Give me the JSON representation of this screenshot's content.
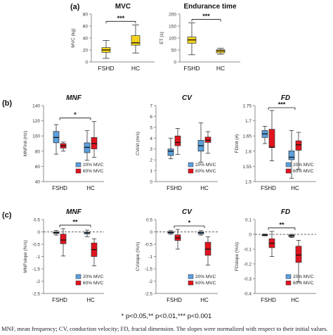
{
  "colors": {
    "gold": "#f5d21c",
    "blue": "#5aa0dc",
    "red": "#e0141e",
    "axis": "#8c8c8c",
    "text": "#111111"
  },
  "significance_legend": "* p<0.05,** p<0.01,*** p<0.001",
  "caption": "MNF, mean frequency; CV, conduction velocity; FD, fractal dimension. The slopes were normalized with respect to their initial values.",
  "chart_data": [
    {
      "type": "box",
      "panel_label": "(a)",
      "title": "MVC",
      "xlabel": "",
      "ylabel": "MVC (kg)",
      "ylim": [
        0,
        80
      ],
      "yticks": [
        "0",
        "20",
        "40",
        "60",
        "80"
      ],
      "categories": [
        "FSHD",
        "HC"
      ],
      "series": [
        {
          "color": "#f5d21c",
          "boxes": [
            {
              "min": 6,
              "q1": 16,
              "median": 20,
              "q3": 24,
              "max": 36
            },
            {
              "min": 15,
              "q1": 28,
              "median": 32,
              "q3": 44,
              "max": 62
            }
          ]
        }
      ],
      "annotation": {
        "text": "***",
        "from": 0,
        "to": 1
      }
    },
    {
      "type": "box",
      "title": "Endurance  time",
      "xlabel": "",
      "ylabel": "ET (s)",
      "ylim": [
        0,
        200
      ],
      "yticks": [
        "0",
        "50",
        "100",
        "150",
        "200"
      ],
      "categories": [
        "FSHD",
        "HC"
      ],
      "series": [
        {
          "color": "#f5d21c",
          "boxes": [
            {
              "min": 30,
              "q1": 78,
              "median": 92,
              "q3": 104,
              "max": 163
            },
            {
              "min": 32,
              "q1": 38,
              "median": 46,
              "q3": 51,
              "max": 57
            }
          ]
        }
      ],
      "annotation": {
        "text": "***",
        "from": 0,
        "to": 1
      }
    },
    {
      "type": "box",
      "panel_label": "(b)",
      "title": "MNF",
      "xlabel": "",
      "ylabel": "MNFinit (Hz)",
      "ylim": [
        40,
        140
      ],
      "yticks": [
        "40",
        "60",
        "80",
        "100",
        "120",
        "140"
      ],
      "categories": [
        "FSHD",
        "HC"
      ],
      "series": [
        {
          "name": "20% MVC",
          "color": "#5aa0dc",
          "boxes": [
            {
              "min": 76,
              "q1": 91,
              "median": 98,
              "q3": 106,
              "max": 115
            },
            {
              "min": 68,
              "q1": 78,
              "median": 85,
              "q3": 91,
              "max": 107
            }
          ]
        },
        {
          "name": "60% MVC",
          "color": "#e0141e",
          "boxes": [
            {
              "min": 80,
              "q1": 84,
              "median": 87,
              "q3": 90,
              "max": 92
            },
            {
              "min": 72,
              "q1": 83,
              "median": 90,
              "q3": 98,
              "max": 119
            }
          ]
        }
      ],
      "annotation": {
        "text": "*",
        "from": 0,
        "to": 1
      }
    },
    {
      "type": "box",
      "title": "CV",
      "xlabel": "",
      "ylabel": "CVinit (m/s)",
      "ylim": [
        0,
        7
      ],
      "yticks": [
        "0",
        "1",
        "2",
        "3",
        "4",
        "5",
        "6",
        "7"
      ],
      "categories": [
        "FSHD",
        "HC"
      ],
      "series": [
        {
          "name": "20% MVC",
          "color": "#5aa0dc",
          "boxes": [
            {
              "min": 2.1,
              "q1": 2.4,
              "median": 2.8,
              "q3": 3.0,
              "max": 4.0
            },
            {
              "min": 1.8,
              "q1": 2.8,
              "median": 3.3,
              "q3": 3.8,
              "max": 5.4
            }
          ]
        },
        {
          "name": "60% MVC",
          "color": "#e0141e",
          "boxes": [
            {
              "min": 2.5,
              "q1": 3.3,
              "median": 3.6,
              "q3": 4.2,
              "max": 4.9
            },
            {
              "min": 2.6,
              "q1": 3.6,
              "median": 3.8,
              "q3": 4.1,
              "max": 4.6
            }
          ]
        }
      ]
    },
    {
      "type": "box",
      "title": "FD",
      "xlabel": "",
      "ylabel": "FDinit (#)",
      "ylim": [
        1.5,
        1.75
      ],
      "yticks": [
        "1.5",
        "1.55",
        "1.6",
        "1.65",
        "1.7",
        "1.75"
      ],
      "categories": [
        "FSHD",
        "HC"
      ],
      "series": [
        {
          "name": "20% MVC",
          "color": "#5aa0dc",
          "boxes": [
            {
              "min": 1.625,
              "q1": 1.645,
              "median": 1.657,
              "q3": 1.668,
              "max": 1.682
            },
            {
              "min": 1.511,
              "q1": 1.572,
              "median": 1.58,
              "q3": 1.601,
              "max": 1.668
            }
          ]
        },
        {
          "name": "60% MVC",
          "color": "#e0141e",
          "boxes": [
            {
              "min": 1.568,
              "q1": 1.612,
              "median": 1.613,
              "q3": 1.672,
              "max": 1.734
            },
            {
              "min": 1.541,
              "q1": 1.603,
              "median": 1.621,
              "q3": 1.634,
              "max": 1.662
            }
          ]
        }
      ],
      "annotation": {
        "text": "***",
        "from": 0,
        "to": 1
      }
    },
    {
      "type": "box",
      "panel_label": "(c)",
      "title": "MNF",
      "xlabel": "",
      "ylabel": "MNFslope (%/s)",
      "ylim": [
        -2.5,
        0.5
      ],
      "yticks": [
        "0.5",
        "0",
        "-0.5",
        "-1",
        "-1.5",
        "-2",
        "-2.5"
      ],
      "categories": [
        "FSHD",
        "HC"
      ],
      "zero_line": true,
      "series": [
        {
          "name": "20% MVC",
          "color": "#5aa0dc",
          "boxes": [
            {
              "min": -0.13,
              "q1": -0.07,
              "median": -0.03,
              "q3": 0.0,
              "max": 0.06
            },
            {
              "min": -0.2,
              "q1": -0.08,
              "median": -0.04,
              "q3": -0.01,
              "max": 0.07
            }
          ]
        },
        {
          "name": "60% MVC",
          "color": "#e0141e",
          "boxes": [
            {
              "min": -0.98,
              "q1": -0.48,
              "median": -0.33,
              "q3": -0.09,
              "max": 0.13
            },
            {
              "min": -1.38,
              "q1": -1.0,
              "median": -0.72,
              "q3": -0.45,
              "max": -0.28
            }
          ]
        }
      ],
      "annotation": {
        "text": "**",
        "from": 0,
        "to": 1
      }
    },
    {
      "type": "box",
      "title": "CV",
      "xlabel": "",
      "ylabel": "CVslope (%/s)",
      "ylim": [
        -2.5,
        0.5
      ],
      "yticks": [
        "0.5",
        "0",
        "-0.5",
        "-1",
        "-1.5",
        "-2",
        "-2.5"
      ],
      "categories": [
        "FSHD",
        "HC"
      ],
      "zero_line": true,
      "series": [
        {
          "name": "20% MVC",
          "color": "#5aa0dc",
          "boxes": [
            {
              "min": -0.1,
              "q1": -0.06,
              "median": -0.02,
              "q3": 0.01,
              "max": 0.05
            },
            {
              "min": -0.13,
              "q1": -0.08,
              "median": -0.04,
              "q3": 0.0,
              "max": 0.05
            }
          ]
        },
        {
          "name": "60% MVC",
          "color": "#e0141e",
          "boxes": [
            {
              "min": -0.7,
              "q1": -0.35,
              "median": -0.24,
              "q3": -0.12,
              "max": 0.1
            },
            {
              "min": -1.35,
              "q1": -0.95,
              "median": -0.7,
              "q3": -0.42,
              "max": -0.2
            }
          ]
        }
      ],
      "annotation": {
        "text": "*",
        "from": 0,
        "to": 1
      }
    },
    {
      "type": "box",
      "title": "FD",
      "xlabel": "",
      "ylabel": "FDslope (%/s)",
      "ylim": [
        -0.4,
        0.1
      ],
      "yticks": [
        "0.1",
        "0",
        "-0.1",
        "-0.2",
        "-0.3",
        "-0.4"
      ],
      "categories": [
        "FSHD",
        "HC"
      ],
      "zero_line": true,
      "series": [
        {
          "name": "20% MVC",
          "color": "#5aa0dc",
          "boxes": [
            {
              "min": -0.01,
              "q1": -0.008,
              "median": -0.005,
              "q3": -0.002,
              "max": 0.002
            },
            {
              "min": -0.022,
              "q1": -0.015,
              "median": -0.01,
              "q3": -0.005,
              "max": 0.0
            }
          ]
        },
        {
          "name": "60% MVC",
          "color": "#e0141e",
          "boxes": [
            {
              "min": -0.15,
              "q1": -0.09,
              "median": -0.06,
              "q3": -0.03,
              "max": 0.02
            },
            {
              "min": -0.32,
              "q1": -0.19,
              "median": -0.14,
              "q3": -0.08,
              "max": -0.04
            }
          ]
        }
      ],
      "annotation": {
        "text": "**",
        "from": 0,
        "to": 1
      }
    }
  ]
}
